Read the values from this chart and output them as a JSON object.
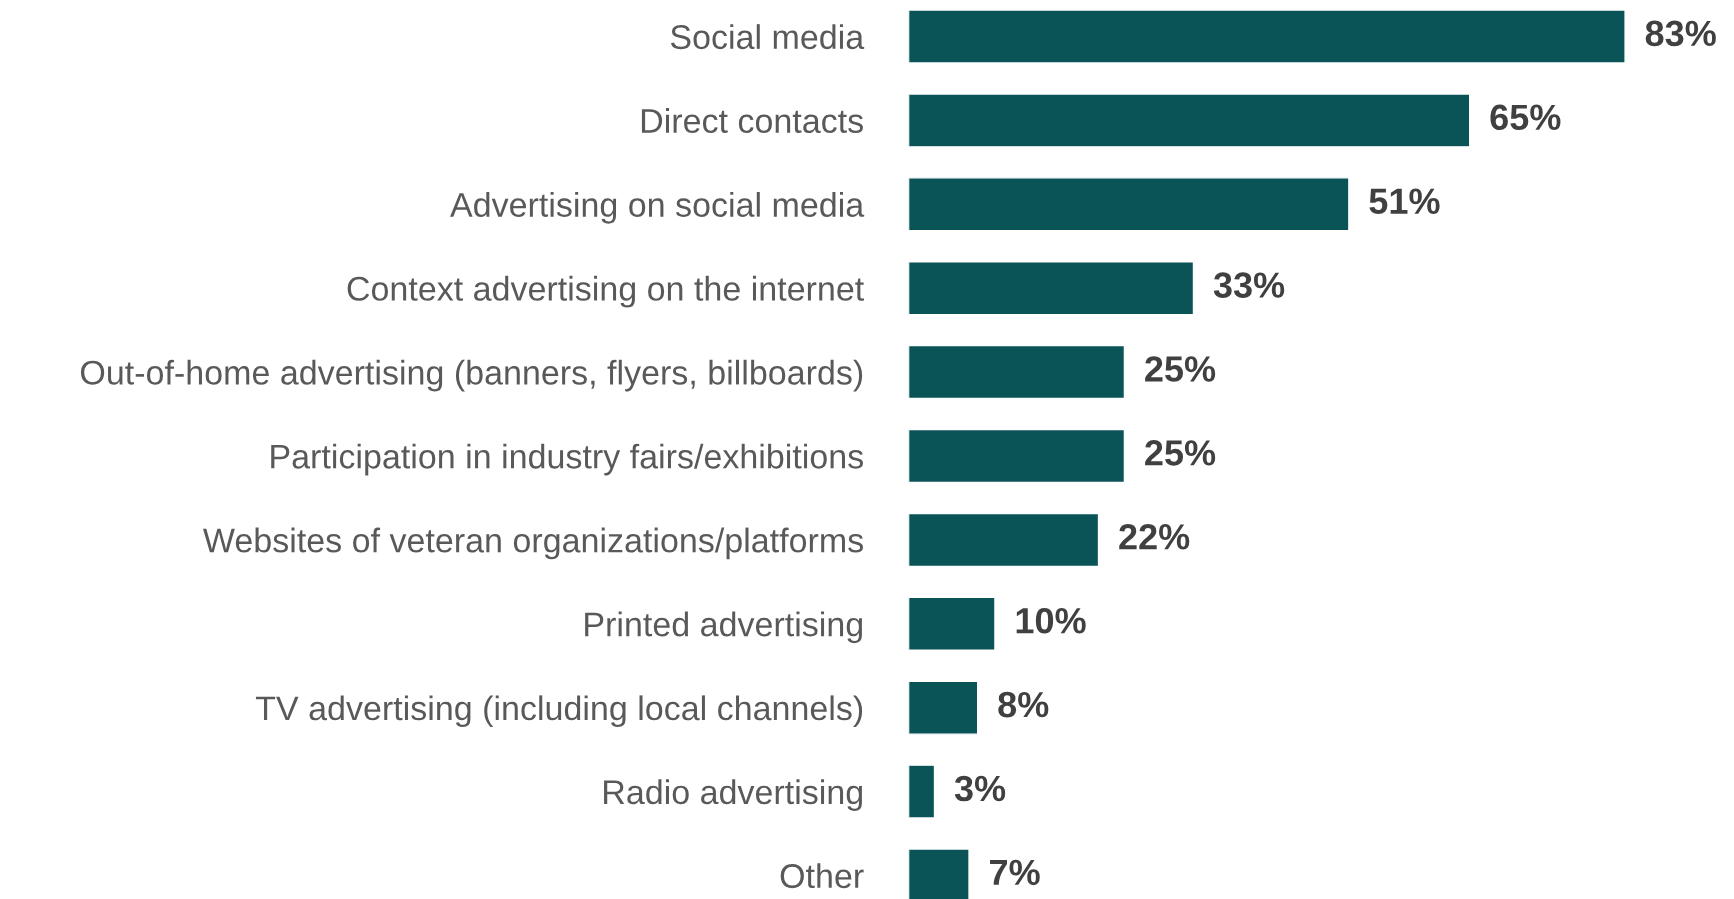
{
  "chart_data": {
    "type": "bar",
    "orientation": "horizontal",
    "categories": [
      "Social media",
      "Direct contacts",
      "Advertising on social media",
      "Context advertising on the internet",
      "Out-of-home advertising (banners, flyers, billboards)",
      "Participation in industry fairs/exhibitions",
      "Websites of veteran organizations/platforms",
      "Printed advertising",
      "TV advertising (including local channels)",
      "Radio advertising",
      "Other"
    ],
    "values": [
      83,
      65,
      51,
      33,
      25,
      25,
      22,
      10,
      8,
      3,
      7
    ],
    "value_labels": [
      "83%",
      "65%",
      "51%",
      "33%",
      "25%",
      "25%",
      "22%",
      "10%",
      "8%",
      "3%",
      "7%"
    ],
    "color": "#0a5357"
  }
}
